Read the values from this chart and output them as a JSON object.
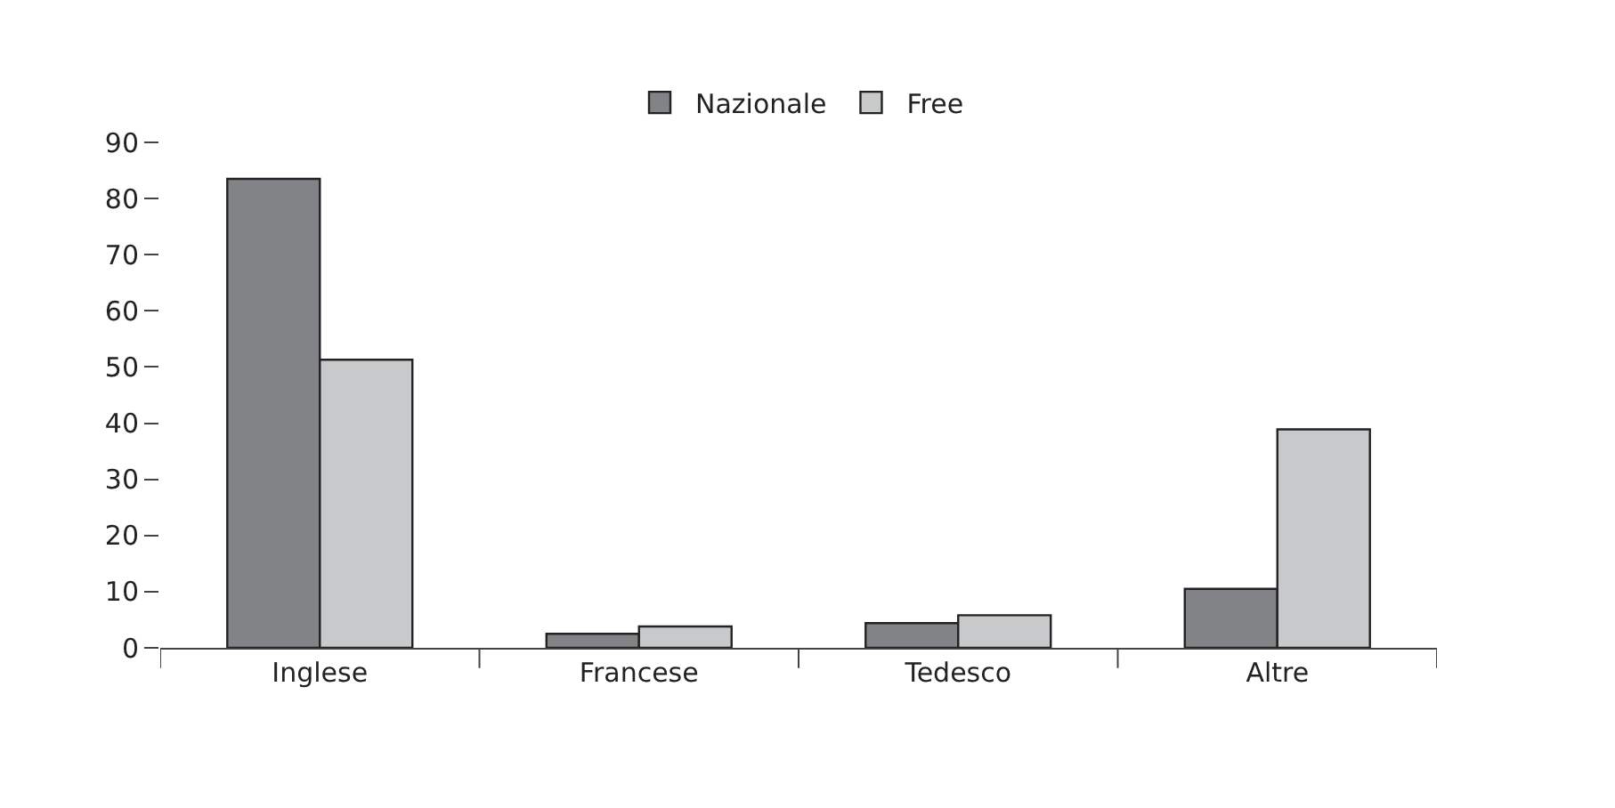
{
  "chart_data": {
    "type": "bar",
    "categories": [
      "Inglese",
      "Francese",
      "Tedesco",
      "Altre"
    ],
    "series": [
      {
        "name": "Nazionale",
        "color": "#828387",
        "values": [
          83.5,
          2.5,
          4.4,
          10.5
        ]
      },
      {
        "name": "Free",
        "color": "#c8c9cb",
        "values": [
          51.3,
          3.8,
          5.8,
          38.9
        ]
      }
    ],
    "ylim": [
      0,
      90
    ],
    "yticks": [
      0,
      10,
      20,
      30,
      40,
      50,
      60,
      70,
      80,
      90
    ],
    "grid": false,
    "legend": "top"
  }
}
